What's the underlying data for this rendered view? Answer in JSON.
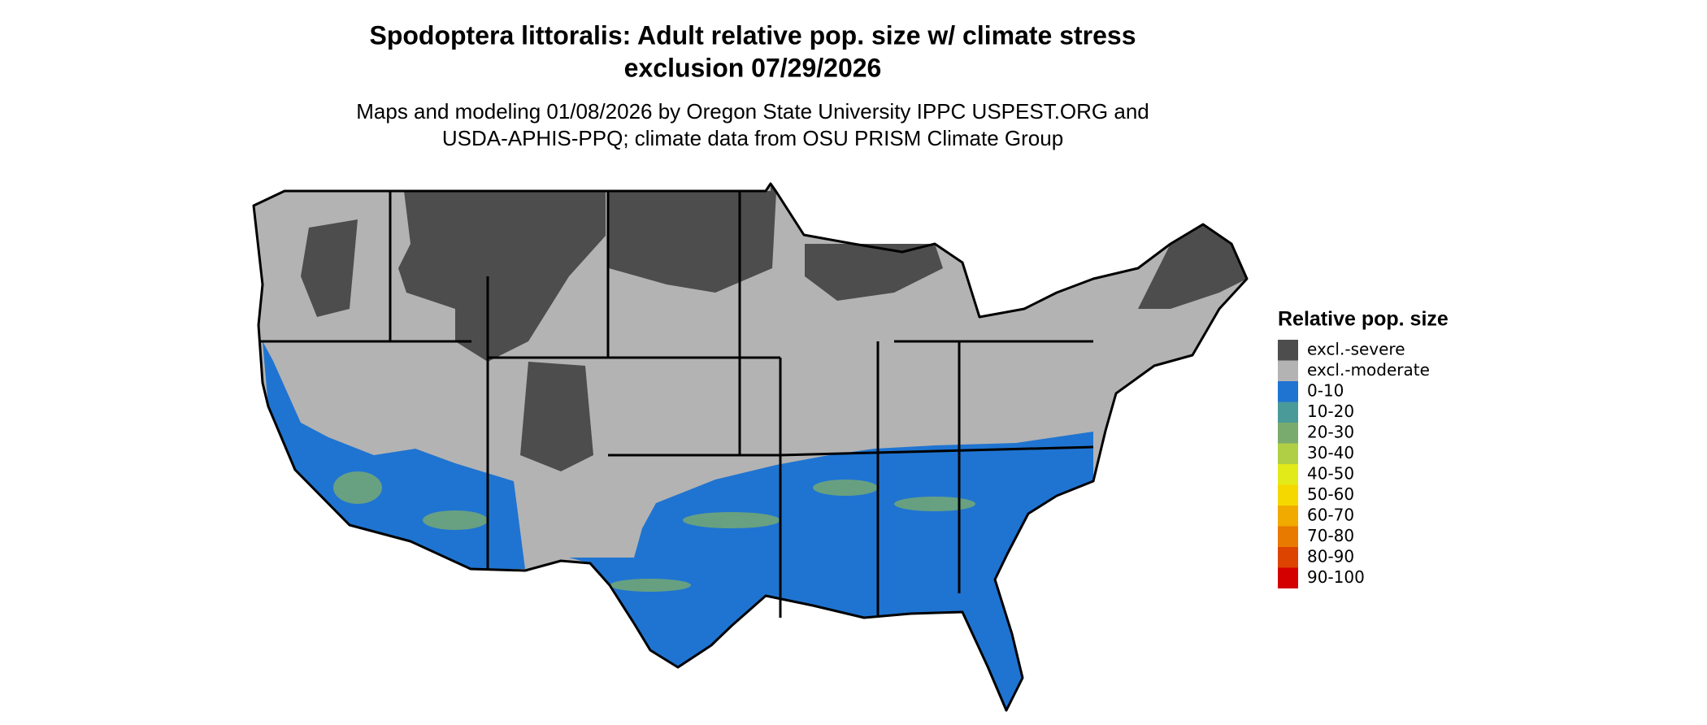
{
  "map": {
    "title": [
      "Spodoptera littoralis: Adult relative pop. size w/ climate stress",
      "exclusion 07/29/2026"
    ],
    "subtitle": [
      "Maps and modeling 01/08/2026 by Oregon State University IPPC USPEST.ORG and",
      "USDA-APHIS-PPQ; climate data from OSU PRISM Climate Group"
    ],
    "legend": {
      "title": "Relative pop. size",
      "items": [
        {
          "label": "excl.-severe",
          "color": "#4d4d4d"
        },
        {
          "label": "excl.-moderate",
          "color": "#b3b3b3"
        },
        {
          "label": "0-10",
          "color": "#1f74d1"
        },
        {
          "label": "10-20",
          "color": "#4a9a9a"
        },
        {
          "label": "20-30",
          "color": "#7aab6e"
        },
        {
          "label": "30-40",
          "color": "#b0cf45"
        },
        {
          "label": "40-50",
          "color": "#e3ea1a"
        },
        {
          "label": "50-60",
          "color": "#f5d800"
        },
        {
          "label": "60-70",
          "color": "#f0aa00"
        },
        {
          "label": "70-80",
          "color": "#e87a00"
        },
        {
          "label": "80-90",
          "color": "#dd4400"
        },
        {
          "label": "90-100",
          "color": "#d40000"
        }
      ]
    }
  }
}
